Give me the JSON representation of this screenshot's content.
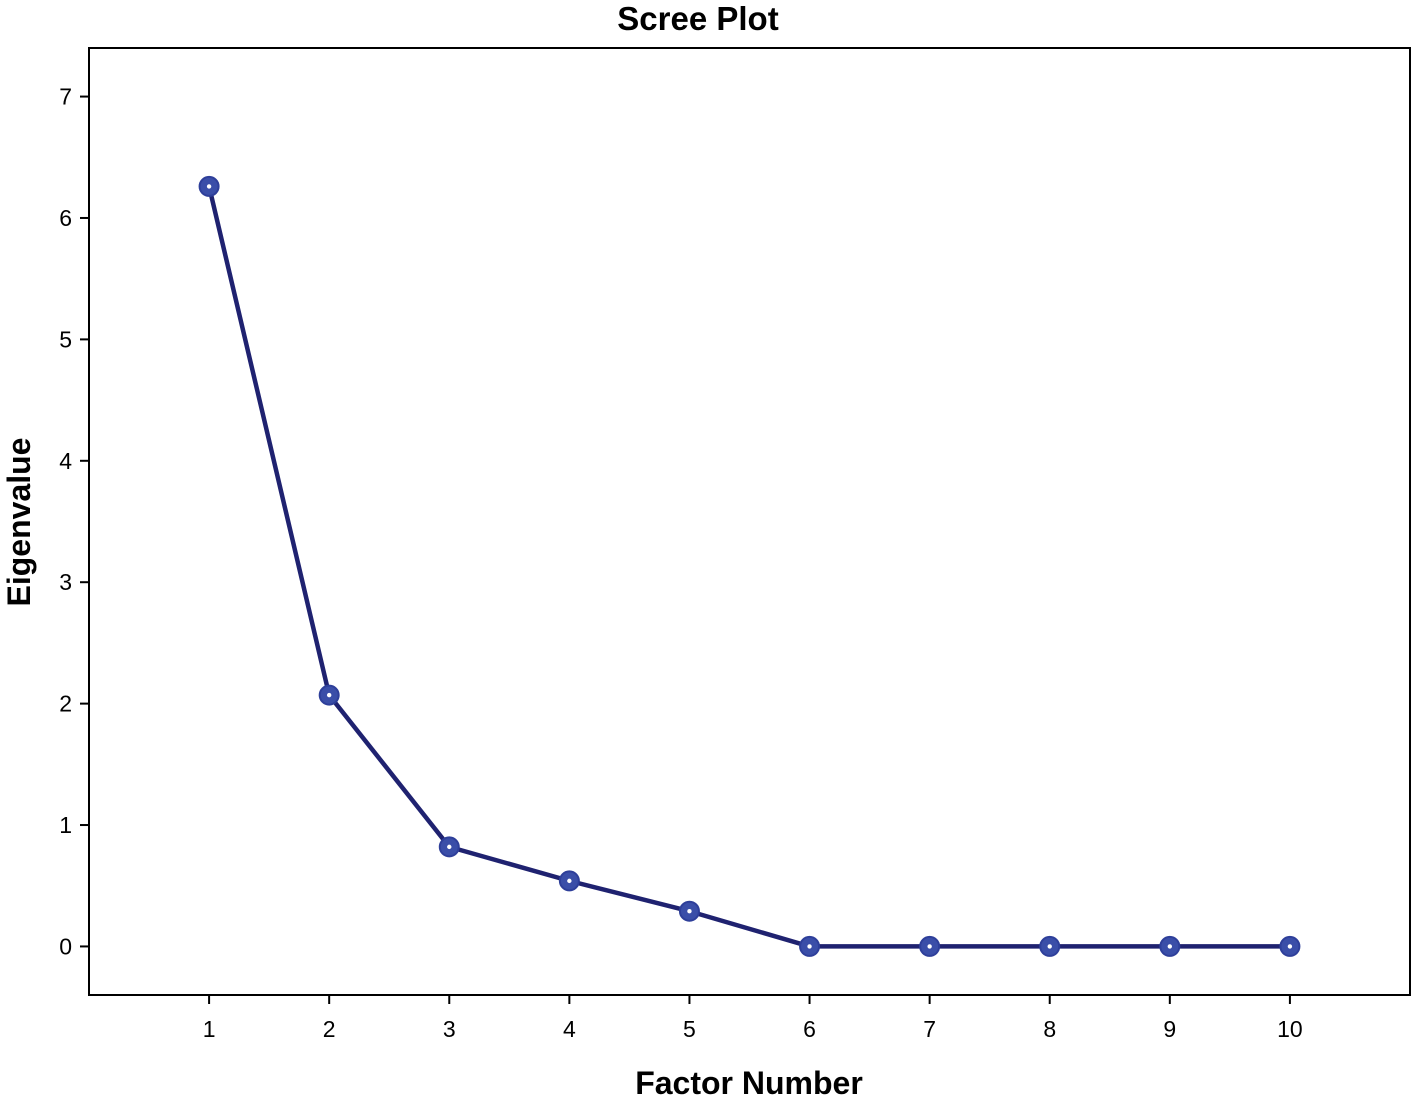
{
  "chart_data": {
    "type": "line",
    "title": "Scree Plot",
    "xlabel": "Factor Number",
    "ylabel": "Eigenvalue",
    "x": [
      1,
      2,
      3,
      4,
      5,
      6,
      7,
      8,
      9,
      10
    ],
    "y": [
      6.26,
      2.07,
      0.82,
      0.54,
      0.29,
      0.0,
      0.0,
      0.0,
      0.0,
      0.0
    ],
    "x_ticks": [
      "1",
      "2",
      "3",
      "4",
      "5",
      "6",
      "7",
      "8",
      "9",
      "10"
    ],
    "y_ticks": [
      "0",
      "1",
      "2",
      "3",
      "4",
      "5",
      "6",
      "7"
    ],
    "xlim": [
      0,
      11
    ],
    "ylim": [
      -0.4,
      7.4
    ],
    "grid": false,
    "legend": "none",
    "colors": {
      "line": "#1f2270",
      "marker_fill": "#3a4ea8",
      "marker_stroke": "#2e3f9a",
      "marker_center": "#ffffff",
      "frame": "#000000"
    }
  }
}
